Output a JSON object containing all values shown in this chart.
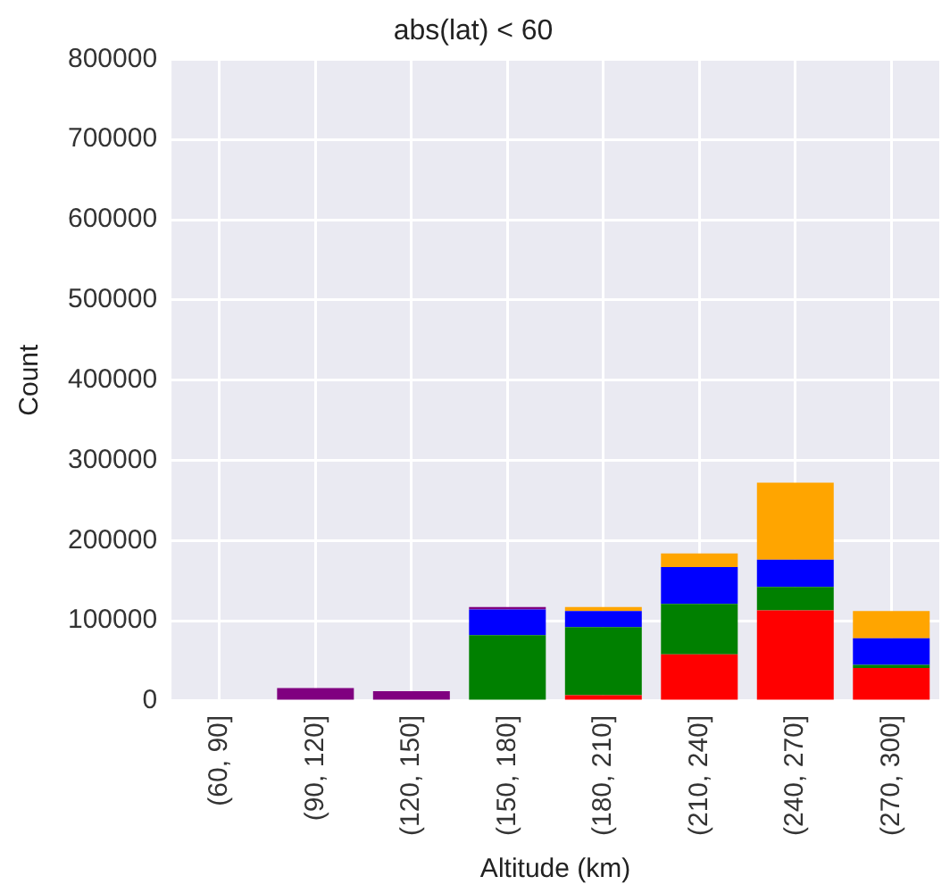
{
  "chart_data": {
    "type": "bar",
    "title": "abs(lat) < 60",
    "xlabel": "Altitude (km)",
    "ylabel": "Count",
    "categories": [
      "(60, 90]",
      "(90, 120]",
      "(120, 150]",
      "(150, 180]",
      "(180, 210]",
      "(210, 240]",
      "(240, 270]",
      "(270, 300]"
    ],
    "stacked": true,
    "series": [
      {
        "color": "#ff0000",
        "values": [
          0,
          0,
          0,
          0,
          7000,
          58000,
          113000,
          41000
        ]
      },
      {
        "color": "#008000",
        "values": [
          0,
          0,
          0,
          82000,
          85000,
          63000,
          29000,
          4000
        ]
      },
      {
        "color": "#0000ff",
        "values": [
          0,
          0,
          0,
          32000,
          20000,
          46000,
          34000,
          33000
        ]
      },
      {
        "color": "#ffa500",
        "values": [
          0,
          0,
          0,
          0,
          5000,
          17000,
          96000,
          34000
        ]
      },
      {
        "color": "#800080",
        "values": [
          0,
          16000,
          12000,
          3000,
          0,
          0,
          0,
          0
        ]
      }
    ],
    "ylim": [
      0,
      800000
    ],
    "yticks": [
      0,
      100000,
      200000,
      300000,
      400000,
      500000,
      600000,
      700000,
      800000
    ],
    "grid": true,
    "legend": false
  }
}
